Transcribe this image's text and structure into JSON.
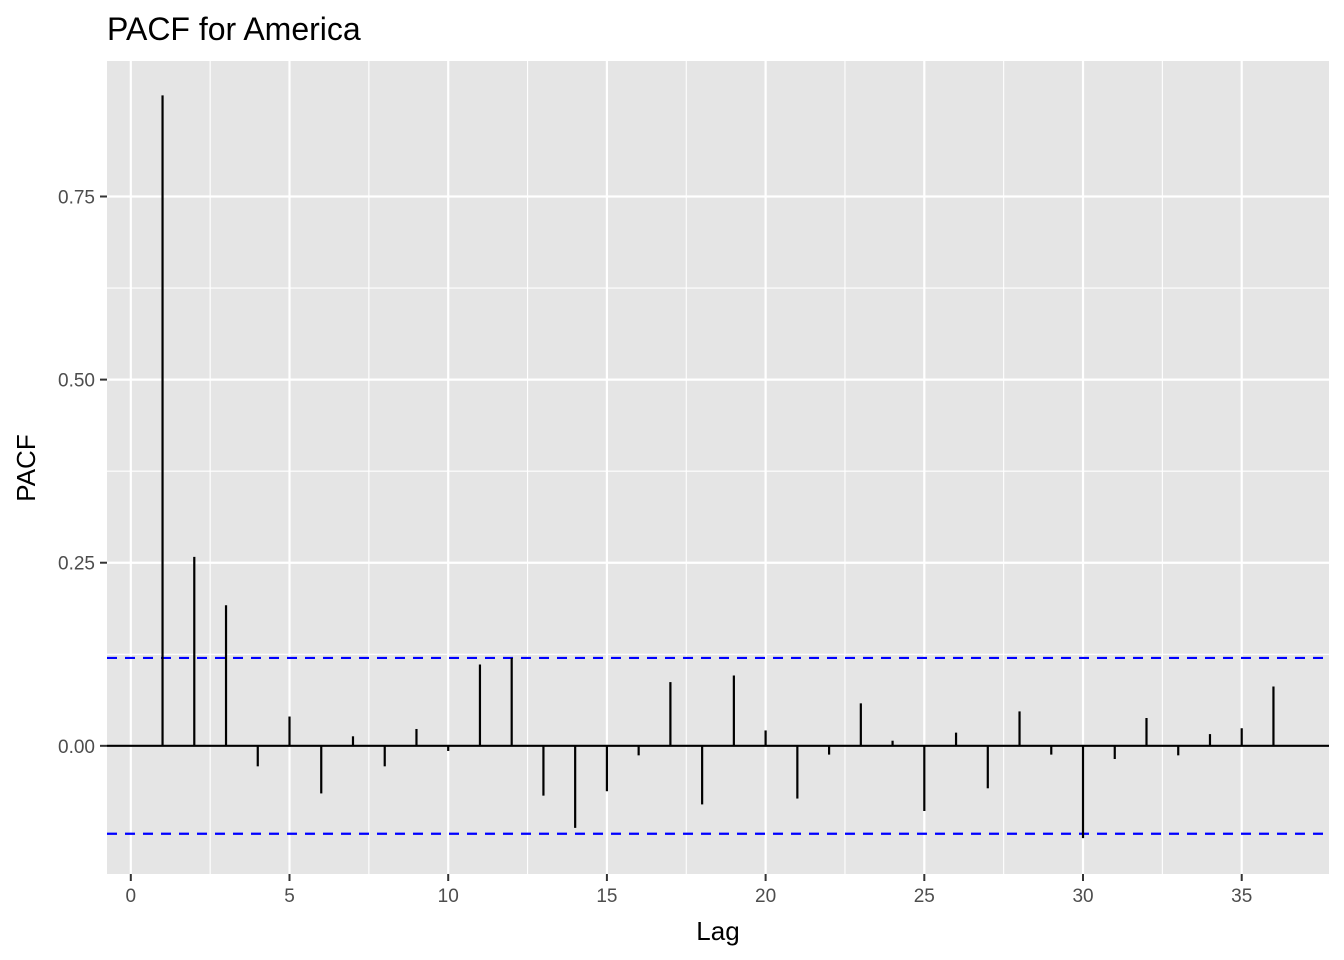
{
  "chart_data": {
    "type": "bar",
    "title": "PACF for America",
    "xlabel": "Lag",
    "ylabel": "PACF",
    "xlim": [
      -0.75,
      37.75
    ],
    "ylim": [
      -0.175,
      0.935
    ],
    "x_ticks": [
      0,
      5,
      10,
      15,
      20,
      25,
      30,
      35
    ],
    "x_tick_labels": [
      "0",
      "5",
      "10",
      "15",
      "20",
      "25",
      "30",
      "35"
    ],
    "y_ticks": [
      0,
      0.25,
      0.5,
      0.75
    ],
    "y_tick_labels": [
      "0.00",
      "0.25",
      "0.50",
      "0.75"
    ],
    "grid": true,
    "confidence_bound": 0.12,
    "series": [
      {
        "x": [
          1,
          2,
          3,
          4,
          5,
          6,
          7,
          8,
          9,
          10,
          11,
          12,
          13,
          14,
          15,
          16,
          17,
          18,
          19,
          20,
          21,
          22,
          23,
          24,
          25,
          26,
          27,
          28,
          29,
          30,
          31,
          32,
          33,
          34,
          35,
          36
        ],
        "values": [
          0.888,
          0.258,
          0.192,
          -0.028,
          0.04,
          -0.065,
          0.013,
          -0.028,
          0.023,
          -0.007,
          0.111,
          0.12,
          -0.068,
          -0.112,
          -0.062,
          -0.013,
          0.087,
          -0.08,
          0.096,
          0.021,
          -0.072,
          -0.012,
          0.058,
          0.007,
          -0.089,
          0.018,
          -0.058,
          0.047,
          -0.012,
          -0.126,
          -0.018,
          0.038,
          -0.013,
          0.016,
          0.024,
          0.081
        ]
      }
    ],
    "colors": {
      "panel": "#e5e5e5",
      "grid": "#ffffff",
      "bar": "#000000",
      "confidence": "#0000ff",
      "tick": "#333333"
    }
  }
}
